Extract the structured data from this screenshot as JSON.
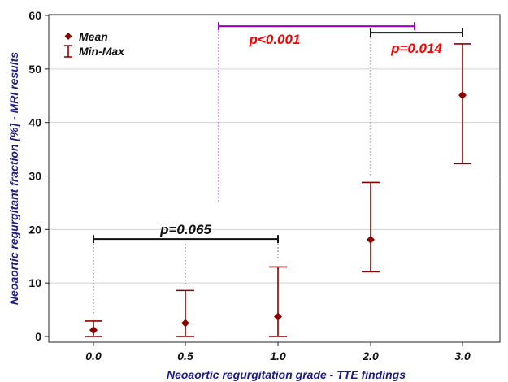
{
  "chart_data": {
    "type": "scatter",
    "title": "",
    "xlabel": "Neoaortic regurgitation grade - TTE findings",
    "ylabel": "Neoaortic regurgitant fraction [%] - MRI results",
    "ylim": [
      0,
      60
    ],
    "yticks": [
      "0",
      "10",
      "20",
      "30",
      "40",
      "50",
      "60"
    ],
    "categories": [
      "0.0",
      "0.5",
      "1.0",
      "2.0",
      "3.0"
    ],
    "grid": true,
    "legend_position": "top-left",
    "series": [
      {
        "name": "Mean",
        "marker": "diamond",
        "color": "#8b0000",
        "values": [
          1.2,
          2.5,
          3.7,
          18.1,
          45.1
        ]
      },
      {
        "name": "Min-Max",
        "marker": "errorbar",
        "color": "#8b0000",
        "min": [
          0.0,
          0.0,
          0.0,
          12.1,
          32.3
        ],
        "max": [
          2.9,
          8.6,
          13.0,
          28.8,
          54.7
        ]
      }
    ],
    "annotations": [
      {
        "text": "p=0.065",
        "from": "0.0",
        "to": "1.0",
        "y": 18.2,
        "color": "#111111"
      },
      {
        "text": "p<0.001",
        "from": "0.5",
        "to": "2.0",
        "y": 58.0,
        "color": "#ff0000",
        "line_color": "#9900cc"
      },
      {
        "text": "p=0.014",
        "from": "2.0",
        "to": "3.0",
        "y": 56.8,
        "color": "#ff0000",
        "line_color": "#111111"
      }
    ]
  }
}
